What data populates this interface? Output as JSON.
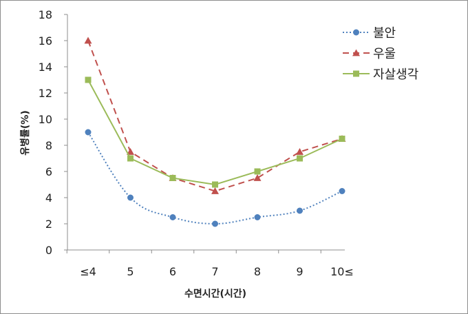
{
  "chart_data": {
    "type": "line",
    "title": "",
    "xlabel": "수면시간(시간)",
    "ylabel": "유병률(%)",
    "categories": [
      "≤4",
      "5",
      "6",
      "7",
      "8",
      "9",
      "10≤"
    ],
    "ylim": [
      0,
      18
    ],
    "yticks": [
      0,
      2,
      4,
      6,
      8,
      10,
      12,
      14,
      16,
      18
    ],
    "grid": false,
    "legend_position": "top-right",
    "series": [
      {
        "name": "불안",
        "values": [
          9,
          4,
          2.5,
          2,
          2.5,
          3,
          4.5
        ],
        "color": "#4f81bd",
        "line_style": "dotted",
        "marker": "circle",
        "smooth": true
      },
      {
        "name": "우울",
        "values": [
          16,
          7.5,
          5.5,
          4.5,
          5.5,
          7.5,
          8.5
        ],
        "color": "#c0504d",
        "line_style": "dashed",
        "marker": "triangle",
        "smooth": false
      },
      {
        "name": "자살생각",
        "values": [
          13,
          7,
          5.5,
          5,
          6,
          7,
          8.5
        ],
        "color": "#9bbb59",
        "line_style": "solid",
        "marker": "square",
        "smooth": false
      }
    ]
  }
}
